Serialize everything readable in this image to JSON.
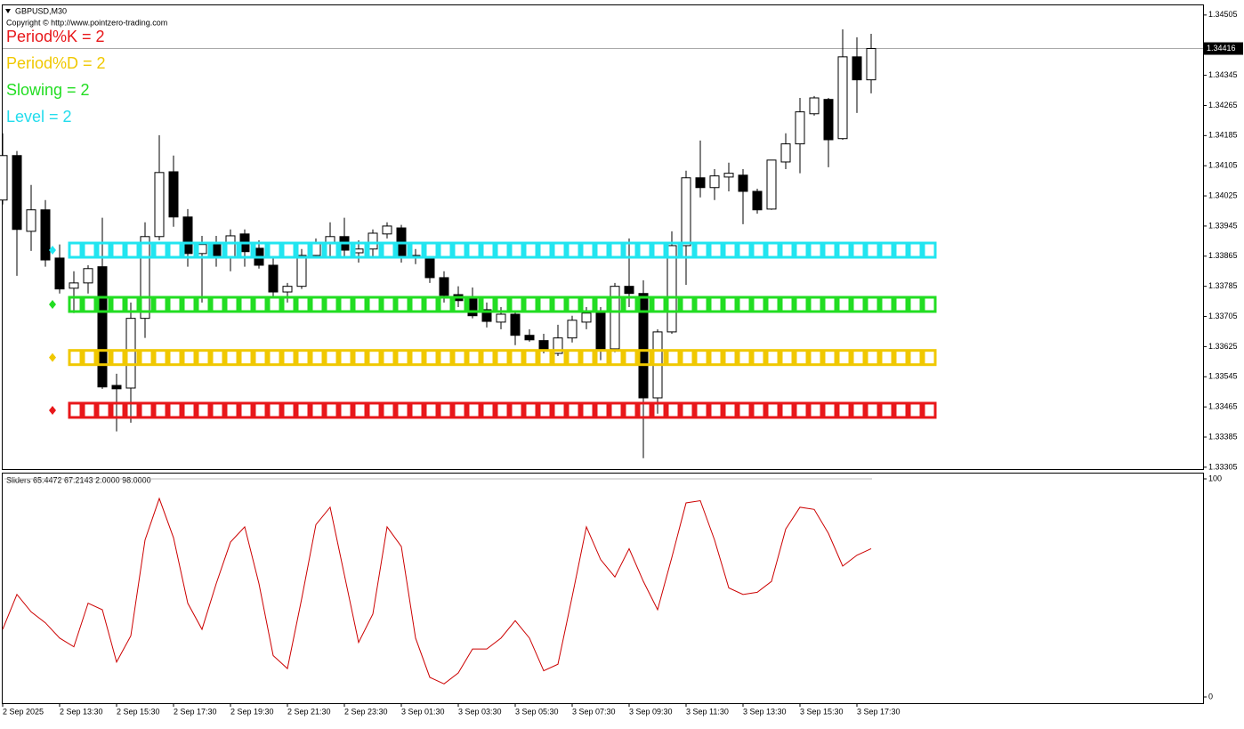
{
  "chart_data": [
    {
      "type": "candlestick",
      "title": "GBPUSD,M30",
      "subtitle": "Copyright © http://www.pointzero-trading.com",
      "annotations": [
        {
          "text": "Period%K = 2",
          "color": "#e8171a"
        },
        {
          "text": "Period%D = 2",
          "color": "#f0c800"
        },
        {
          "text": "Slowing = 2",
          "color": "#22dd22"
        },
        {
          "text": "Level = 2",
          "color": "#22dcec"
        }
      ],
      "categories": [
        "2 Sep 2025",
        null,
        null,
        null,
        "2 Sep 13:30",
        null,
        null,
        null,
        "2 Sep 15:30",
        null,
        null,
        null,
        "2 Sep 17:30",
        null,
        null,
        null,
        "2 Sep 19:30",
        null,
        null,
        null,
        "2 Sep 21:30",
        null,
        null,
        null,
        "2 Sep 23:30",
        null,
        null,
        null,
        "3 Sep 01:30",
        null,
        null,
        null,
        "3 Sep 03:30",
        null,
        null,
        null,
        "3 Sep 05:30",
        null,
        null,
        null,
        "3 Sep 07:30",
        null,
        null,
        null,
        "3 Sep 09:30",
        null,
        null,
        null,
        "3 Sep 11:30",
        null,
        null,
        null,
        "3 Sep 13:30",
        null,
        null,
        null,
        "3 Sep 15:30",
        null,
        null,
        null,
        "3 Sep 17:30",
        null
      ],
      "open": [
        1.34014,
        1.34132,
        1.33931,
        1.33988,
        1.3386,
        1.3378,
        1.33794,
        1.33837,
        1.33522,
        1.33515,
        1.337,
        1.33917,
        1.34089,
        1.33969,
        1.33872,
        1.33896,
        1.3386,
        1.33924,
        1.33886,
        1.33841,
        1.3377,
        1.33785,
        1.33867,
        1.339,
        1.33917,
        1.33874,
        1.33884,
        1.33924,
        1.3394,
        1.33867,
        1.3386,
        1.33808,
        1.33763,
        1.33752,
        1.33723,
        1.3369,
        1.33711,
        1.33655,
        1.33641,
        1.33607,
        1.33648,
        1.3369,
        1.33714,
        1.33619,
        1.33785,
        1.33766,
        1.33489,
        1.33664,
        1.33893,
        1.34073,
        1.34047,
        1.34075,
        1.3408,
        1.34037,
        1.3399,
        1.34115,
        1.34163,
        1.34243,
        1.34281,
        1.34177,
        1.34394,
        1.34333
      ],
      "high": [
        1.34191,
        1.34144,
        1.34054,
        1.34014,
        1.33896,
        1.33825,
        1.33841,
        1.33967,
        1.33553,
        1.33742,
        1.33955,
        1.34186,
        1.34132,
        1.3399,
        1.33919,
        1.33919,
        1.33936,
        1.33936,
        1.33907,
        1.3386,
        1.33794,
        1.33884,
        1.33912,
        1.33955,
        1.33967,
        1.33907,
        1.33936,
        1.33955,
        1.33948,
        1.33884,
        1.33865,
        1.33825,
        1.33785,
        1.33782,
        1.33742,
        1.3373,
        1.33719,
        1.33671,
        1.33659,
        1.33683,
        1.33707,
        1.3373,
        1.3373,
        1.33794,
        1.33912,
        1.33801,
        1.33671,
        1.33931,
        1.34092,
        1.34172,
        1.34096,
        1.34113,
        1.34096,
        1.34044,
        1.3412,
        1.34191,
        1.34285,
        1.3429,
        1.34285,
        1.34467,
        1.34446,
        1.34455
      ],
      "low": [
        1.34002,
        1.33813,
        1.33879,
        1.33837,
        1.33766,
        1.33714,
        1.33766,
        1.33513,
        1.334,
        1.33423,
        1.33648,
        1.33907,
        1.33943,
        1.33837,
        1.33742,
        1.33837,
        1.33825,
        1.33837,
        1.33832,
        1.33754,
        1.33742,
        1.33778,
        1.3386,
        1.3386,
        1.3386,
        1.33848,
        1.3386,
        1.33912,
        1.33848,
        1.33844,
        1.33794,
        1.33742,
        1.3373,
        1.337,
        1.33676,
        1.33671,
        1.33629,
        1.33638,
        1.33607,
        1.336,
        1.33636,
        1.33671,
        1.33589,
        1.3361,
        1.3373,
        1.33329,
        1.33447,
        1.33659,
        1.33789,
        1.34021,
        1.34014,
        1.34037,
        1.3395,
        1.33978,
        1.33988,
        1.34096,
        1.34085,
        1.34238,
        1.34101,
        1.34174,
        1.34245,
        1.34297
      ],
      "close": [
        1.34132,
        1.33936,
        1.33988,
        1.33855,
        1.33778,
        1.33794,
        1.33832,
        1.33518,
        1.33513,
        1.337,
        1.33917,
        1.34087,
        1.33969,
        1.33872,
        1.33896,
        1.33865,
        1.33919,
        1.33877,
        1.33841,
        1.3377,
        1.33785,
        1.33867,
        1.339,
        1.33917,
        1.33881,
        1.33884,
        1.33926,
        1.33945,
        1.3386,
        1.3386,
        1.33808,
        1.33761,
        1.33747,
        1.33707,
        1.33692,
        1.33711,
        1.33655,
        1.33643,
        1.33617,
        1.33648,
        1.33695,
        1.33714,
        1.33619,
        1.33785,
        1.33766,
        1.33489,
        1.33664,
        1.33893,
        1.34073,
        1.34047,
        1.34078,
        1.34085,
        1.34037,
        1.33988,
        1.3412,
        1.34163,
        1.34248,
        1.34285,
        1.34174,
        1.34394,
        1.34333,
        1.34416
      ],
      "bands": [
        {
          "color": "#22e5f0",
          "value": 1.33881
        },
        {
          "color": "#22dd22",
          "value": 1.33737
        },
        {
          "color": "#f0c800",
          "value": 1.33596
        },
        {
          "color": "#e8171a",
          "value": 1.33456
        }
      ],
      "current_price": 1.34416,
      "ylim": [
        1.333,
        1.34533
      ],
      "yticks": [
        1.34505,
        1.34345,
        1.34265,
        1.34185,
        1.34105,
        1.34025,
        1.33945,
        1.33865,
        1.33785,
        1.33705,
        1.33625,
        1.33545,
        1.33465,
        1.33385,
        1.33305
      ],
      "grid": false
    },
    {
      "type": "line",
      "title": "Sliders 65.4472 67.2143 2.0000 98.0000",
      "color": "#cc0000",
      "values": [
        31,
        47,
        39,
        34,
        27,
        23,
        43,
        40,
        16,
        28,
        72,
        91,
        73,
        43,
        31,
        52,
        71,
        78,
        52,
        19,
        13,
        45,
        79,
        87,
        56,
        25,
        38,
        78,
        69,
        27,
        9,
        6,
        11,
        22,
        22,
        27,
        35,
        27,
        12,
        15,
        46,
        78,
        63,
        55,
        68,
        53,
        40,
        64,
        89,
        90,
        72,
        50,
        47,
        48,
        53,
        77,
        87,
        86,
        75,
        60,
        65,
        68
      ],
      "ylim": [
        0,
        100
      ],
      "yticks": [
        100,
        0
      ],
      "grid": false
    }
  ]
}
